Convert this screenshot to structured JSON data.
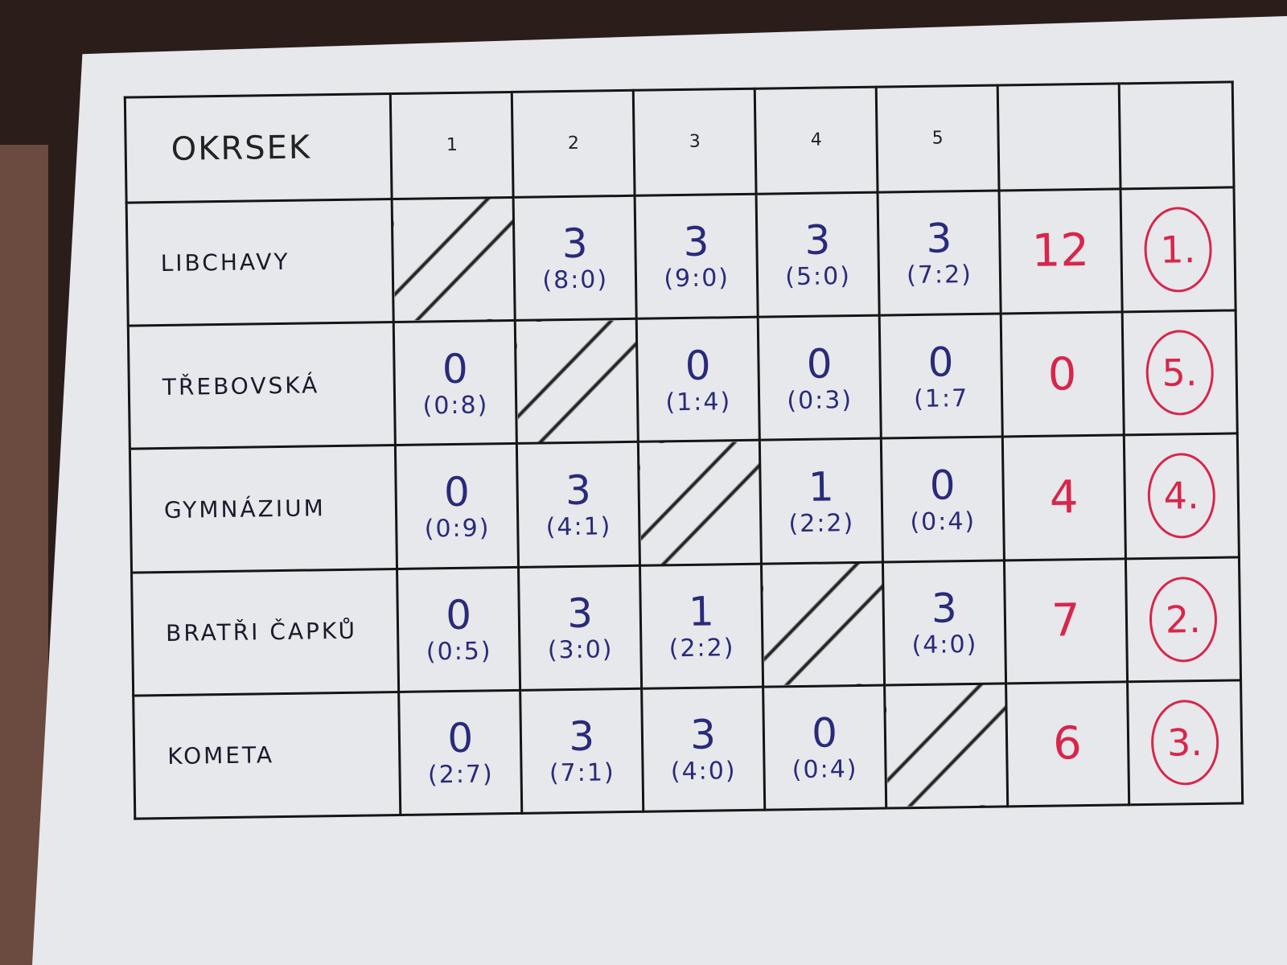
{
  "header": {
    "title": "OKRSEK",
    "columns": [
      "1",
      "2",
      "3",
      "4",
      "5"
    ],
    "points_header": "",
    "rank_header": ""
  },
  "colors": {
    "ink": "#2a2a7a",
    "red": "#d8264a"
  },
  "rows": [
    {
      "name": "LIBCHAVY",
      "cells": [
        null,
        {
          "pts": "3",
          "score": "(8:0)"
        },
        {
          "pts": "3",
          "score": "(9:0)"
        },
        {
          "pts": "3",
          "score": "(5:0)"
        },
        {
          "pts": "3",
          "score": "(7:2)"
        }
      ],
      "total": "12",
      "rank": "1."
    },
    {
      "name": "TŘEBOVSKÁ",
      "cells": [
        {
          "pts": "0",
          "score": "(0:8)"
        },
        null,
        {
          "pts": "0",
          "score": "(1:4)"
        },
        {
          "pts": "0",
          "score": "(0:3)"
        },
        {
          "pts": "0",
          "score": "(1:7"
        }
      ],
      "total": "0",
      "rank": "5."
    },
    {
      "name": "GYMNÁZIUM",
      "cells": [
        {
          "pts": "0",
          "score": "(0:9)"
        },
        {
          "pts": "3",
          "score": "(4:1)"
        },
        null,
        {
          "pts": "1",
          "score": "(2:2)"
        },
        {
          "pts": "0",
          "score": "(0:4)"
        }
      ],
      "total": "4",
      "rank": "4."
    },
    {
      "name": "BRATŘI ČAPKŮ",
      "cells": [
        {
          "pts": "0",
          "score": "(0:5)"
        },
        {
          "pts": "3",
          "score": "(3:0)"
        },
        {
          "pts": "1",
          "score": "(2:2)"
        },
        null,
        {
          "pts": "3",
          "score": "(4:0)"
        }
      ],
      "total": "7",
      "rank": "2."
    },
    {
      "name": "KOMETA",
      "cells": [
        {
          "pts": "0",
          "score": "(2:7)"
        },
        {
          "pts": "3",
          "score": "(7:1)"
        },
        {
          "pts": "3",
          "score": "(4:0)"
        },
        {
          "pts": "0",
          "score": "(0:4)"
        },
        null
      ],
      "total": "6",
      "rank": "3."
    }
  ]
}
